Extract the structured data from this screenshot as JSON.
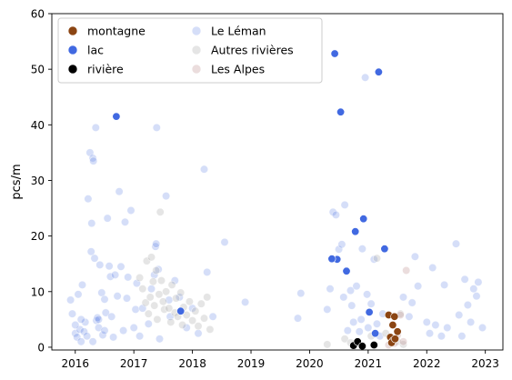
{
  "chart_data": {
    "type": "scatter",
    "title": "",
    "xlabel": "",
    "ylabel": "pcs/m",
    "xlim": [
      2015.6,
      2023.3
    ],
    "ylim": [
      -0.5,
      60
    ],
    "xticks": [
      2016,
      2017,
      2018,
      2019,
      2020,
      2021,
      2022,
      2023
    ],
    "xtick_labels": [
      "2016",
      "2017",
      "2018",
      "2019",
      "2020",
      "2021",
      "2022",
      "2023"
    ],
    "yticks": [
      0,
      10,
      20,
      30,
      40,
      50,
      60
    ],
    "ytick_labels": [
      "0",
      "10",
      "20",
      "30",
      "40",
      "50",
      "60"
    ],
    "grid": false,
    "legend": {
      "placement": "top-left",
      "columns": 2
    },
    "series": [
      {
        "name": "montagne",
        "color": "#8B4513",
        "points": [
          [
            2021.35,
            5.8
          ],
          [
            2021.45,
            5.5
          ],
          [
            2021.42,
            4.0
          ],
          [
            2021.5,
            2.8
          ],
          [
            2021.38,
            1.8
          ],
          [
            2021.43,
            1.2
          ],
          [
            2021.4,
            0.8
          ],
          [
            2021.46,
            1.5
          ]
        ]
      },
      {
        "name": "lac",
        "color": "#4169E1",
        "points": [
          [
            2016.7,
            41.5
          ],
          [
            2017.8,
            6.5
          ],
          [
            2020.43,
            52.8
          ],
          [
            2020.53,
            42.3
          ],
          [
            2020.63,
            13.7
          ],
          [
            2020.47,
            15.8
          ],
          [
            2020.38,
            15.9
          ],
          [
            2020.78,
            20.8
          ],
          [
            2020.92,
            23.1
          ],
          [
            2021.18,
            49.5
          ],
          [
            2021.28,
            17.7
          ],
          [
            2021.12,
            2.5
          ],
          [
            2021.02,
            6.3
          ]
        ]
      },
      {
        "name": "rivière",
        "color": "#000000",
        "points": [
          [
            2020.75,
            0.3
          ],
          [
            2020.82,
            1.0
          ],
          [
            2020.9,
            0.2
          ],
          [
            2021.1,
            0.4
          ]
        ]
      },
      {
        "name": "Le Léman",
        "color": "#4169E1",
        "alpha": 0.22,
        "points": [
          [
            2015.92,
            8.5
          ],
          [
            2015.95,
            6.0
          ],
          [
            2016.0,
            2.5
          ],
          [
            2016.03,
            1.8
          ],
          [
            2016.05,
            9.5
          ],
          [
            2016.08,
            3.2
          ],
          [
            2016.1,
            1.0
          ],
          [
            2016.12,
            11.2
          ],
          [
            2016.15,
            2.8
          ],
          [
            2016.17,
            4.5
          ],
          [
            2016.2,
            2.0
          ],
          [
            2016.22,
            26.7
          ],
          [
            2016.25,
            35.0
          ],
          [
            2016.27,
            17.2
          ],
          [
            2016.28,
            22.3
          ],
          [
            2016.3,
            34.0
          ],
          [
            2016.31,
            33.5
          ],
          [
            2016.33,
            16.0
          ],
          [
            2016.35,
            39.5
          ],
          [
            2016.36,
            4.8
          ],
          [
            2016.38,
            5.3
          ],
          [
            2016.4,
            3.5
          ],
          [
            2016.42,
            14.8
          ],
          [
            2016.45,
            9.8
          ],
          [
            2016.47,
            2.2
          ],
          [
            2016.5,
            8.6
          ],
          [
            2016.52,
            6.2
          ],
          [
            2016.55,
            23.2
          ],
          [
            2016.58,
            14.6
          ],
          [
            2016.6,
            12.7
          ],
          [
            2016.62,
            5.5
          ],
          [
            2016.65,
            1.8
          ],
          [
            2016.68,
            13.0
          ],
          [
            2016.72,
            9.2
          ],
          [
            2016.75,
            28.0
          ],
          [
            2016.78,
            14.5
          ],
          [
            2016.82,
            3.0
          ],
          [
            2016.85,
            22.5
          ],
          [
            2016.88,
            8.8
          ],
          [
            2016.9,
            12.6
          ],
          [
            2016.95,
            24.6
          ],
          [
            2017.0,
            3.5
          ],
          [
            2017.03,
            6.8
          ],
          [
            2017.05,
            11.5
          ],
          [
            2017.1,
            2.0
          ],
          [
            2017.15,
            7.0
          ],
          [
            2017.25,
            4.2
          ],
          [
            2017.3,
            10.5
          ],
          [
            2017.35,
            13.0
          ],
          [
            2017.37,
            18.1
          ],
          [
            2017.38,
            18.6
          ],
          [
            2017.39,
            39.5
          ],
          [
            2017.42,
            14.0
          ],
          [
            2017.44,
            1.5
          ],
          [
            2017.55,
            27.2
          ],
          [
            2017.6,
            8.5
          ],
          [
            2017.62,
            5.5
          ],
          [
            2017.7,
            12.0
          ],
          [
            2017.78,
            9.0
          ],
          [
            2017.9,
            3.5
          ],
          [
            2018.0,
            7.0
          ],
          [
            2018.1,
            2.5
          ],
          [
            2018.2,
            32.0
          ],
          [
            2018.25,
            13.5
          ],
          [
            2018.35,
            5.5
          ],
          [
            2018.55,
            18.9
          ],
          [
            2018.9,
            8.1
          ],
          [
            2019.8,
            5.2
          ],
          [
            2019.85,
            9.7
          ],
          [
            2020.3,
            6.8
          ],
          [
            2020.35,
            10.5
          ],
          [
            2020.4,
            24.3
          ],
          [
            2020.45,
            23.8
          ],
          [
            2020.5,
            17.6
          ],
          [
            2020.55,
            18.5
          ],
          [
            2020.58,
            9.0
          ],
          [
            2020.6,
            25.6
          ],
          [
            2020.65,
            3.0
          ],
          [
            2020.7,
            10.2
          ],
          [
            2020.72,
            7.5
          ],
          [
            2020.75,
            4.5
          ],
          [
            2020.8,
            11.0
          ],
          [
            2020.85,
            2.8
          ],
          [
            2020.88,
            5.0
          ],
          [
            2020.9,
            17.7
          ],
          [
            2020.95,
            48.5
          ],
          [
            2020.98,
            9.5
          ],
          [
            2021.0,
            3.5
          ],
          [
            2021.05,
            7.8
          ],
          [
            2021.1,
            15.8
          ],
          [
            2021.15,
            4.2
          ],
          [
            2021.2,
            2.0
          ],
          [
            2021.25,
            6.0
          ],
          [
            2021.6,
            9.0
          ],
          [
            2021.7,
            5.5
          ],
          [
            2021.75,
            8.0
          ],
          [
            2021.8,
            16.3
          ],
          [
            2021.85,
            11.0
          ],
          [
            2022.0,
            4.5
          ],
          [
            2022.05,
            2.5
          ],
          [
            2022.1,
            14.3
          ],
          [
            2022.15,
            4.0
          ],
          [
            2022.25,
            2.0
          ],
          [
            2022.3,
            11.2
          ],
          [
            2022.35,
            3.5
          ],
          [
            2022.5,
            18.6
          ],
          [
            2022.55,
            5.8
          ],
          [
            2022.6,
            2.0
          ],
          [
            2022.65,
            12.2
          ],
          [
            2022.7,
            7.6
          ],
          [
            2022.75,
            4.5
          ],
          [
            2022.8,
            10.5
          ],
          [
            2022.85,
            9.2
          ],
          [
            2022.88,
            11.7
          ],
          [
            2022.95,
            3.5
          ],
          [
            2016.0,
            4.0
          ],
          [
            2016.1,
            5.0
          ],
          [
            2016.4,
            5.0
          ],
          [
            2016.5,
            3.0
          ],
          [
            2016.3,
            1.0
          ]
        ]
      },
      {
        "name": "Autres rivières",
        "color": "#a9a9a9",
        "alpha": 0.3,
        "points": [
          [
            2017.1,
            12.5
          ],
          [
            2017.15,
            10.5
          ],
          [
            2017.2,
            8.0
          ],
          [
            2017.22,
            15.5
          ],
          [
            2017.25,
            6.0
          ],
          [
            2017.28,
            9.0
          ],
          [
            2017.3,
            16.2
          ],
          [
            2017.33,
            11.8
          ],
          [
            2017.35,
            7.5
          ],
          [
            2017.38,
            13.8
          ],
          [
            2017.4,
            5.0
          ],
          [
            2017.43,
            9.5
          ],
          [
            2017.45,
            24.3
          ],
          [
            2017.47,
            12.0
          ],
          [
            2017.5,
            8.2
          ],
          [
            2017.52,
            6.8
          ],
          [
            2017.55,
            10.0
          ],
          [
            2017.6,
            7.0
          ],
          [
            2017.63,
            4.5
          ],
          [
            2017.65,
            11.2
          ],
          [
            2017.7,
            6.2
          ],
          [
            2017.72,
            8.8
          ],
          [
            2017.75,
            5.5
          ],
          [
            2017.8,
            9.8
          ],
          [
            2017.83,
            4.0
          ],
          [
            2017.85,
            7.2
          ],
          [
            2017.9,
            5.8
          ],
          [
            2017.95,
            8.2
          ],
          [
            2018.0,
            4.8
          ],
          [
            2018.05,
            6.5
          ],
          [
            2018.1,
            3.8
          ],
          [
            2018.15,
            7.8
          ],
          [
            2018.2,
            5.2
          ],
          [
            2018.25,
            9.0
          ],
          [
            2018.3,
            3.2
          ],
          [
            2020.3,
            0.5
          ],
          [
            2020.6,
            1.5
          ],
          [
            2020.7,
            0.8
          ],
          [
            2021.05,
            2.0
          ],
          [
            2021.15,
            16.0
          ],
          [
            2021.3,
            2.5
          ],
          [
            2021.5,
            1.0
          ],
          [
            2021.55,
            6.0
          ],
          [
            2021.6,
            0.5
          ]
        ]
      },
      {
        "name": "Les Alpes",
        "color": "#bc8f8f",
        "alpha": 0.3,
        "points": [
          [
            2021.65,
            13.8
          ],
          [
            2021.55,
            5.8
          ],
          [
            2021.4,
            1.5
          ],
          [
            2021.45,
            0.7
          ],
          [
            2021.5,
            2.2
          ],
          [
            2021.35,
            0.4
          ],
          [
            2021.6,
            1.0
          ]
        ]
      }
    ]
  }
}
